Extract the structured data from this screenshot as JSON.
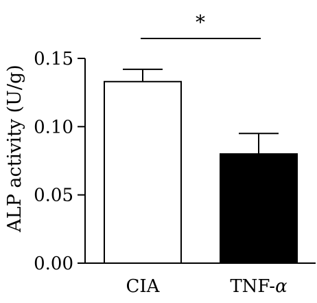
{
  "chart_data": {
    "type": "bar",
    "categories": [
      "CIA",
      "TNF-α"
    ],
    "category_labels": [
      {
        "text": "CIA",
        "suffix": ""
      },
      {
        "text": "TNF-",
        "suffix": "α"
      }
    ],
    "values": [
      0.133,
      0.08
    ],
    "errors": [
      0.009,
      0.015
    ],
    "bar_fills": [
      "#ffffff",
      "#000000"
    ],
    "ylabel": "ALP activity (U/g)",
    "xlabel": "",
    "title": "",
    "ylim": [
      0,
      0.15
    ],
    "yticks": [
      0.0,
      0.05,
      0.1,
      0.15
    ],
    "ytick_labels": [
      "0.00",
      "0.05",
      "0.10",
      "0.15"
    ],
    "significance": {
      "between": [
        "CIA",
        "TNF-α"
      ],
      "label": "*"
    },
    "grid": false
  }
}
